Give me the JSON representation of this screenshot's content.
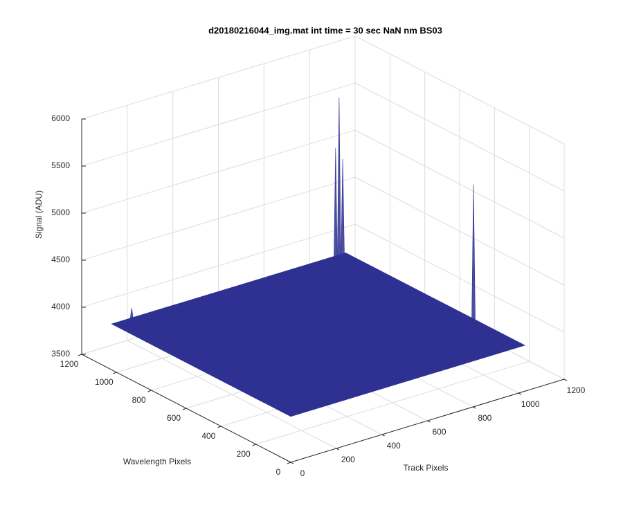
{
  "chart_data": {
    "type": "surface3d",
    "title": "d20180216044_img.mat int time = 30 sec  NaN nm BS03",
    "xlabel": "Track Pixels",
    "ylabel": "Wavelength Pixels",
    "zlabel": "Signal (ADU)",
    "xlim": [
      0,
      1200
    ],
    "xticks": [
      0,
      200,
      400,
      600,
      800,
      1000,
      1200
    ],
    "ylim": [
      0,
      1200
    ],
    "yticks": [
      0,
      200,
      400,
      600,
      800,
      1000,
      1200
    ],
    "zlim": [
      3500,
      6000
    ],
    "zticks": [
      3500,
      4000,
      4500,
      5000,
      5500,
      6000
    ],
    "grid": true,
    "color": "#2e3192",
    "surface": {
      "xrange": [
        0,
        1024
      ],
      "yrange": [
        0,
        1024
      ],
      "level": 3990
    },
    "peaks": [
      {
        "x": 967,
        "y": 987,
        "z": 5720
      },
      {
        "x": 950,
        "y": 985,
        "z": 5200
      },
      {
        "x": 985,
        "y": 990,
        "z": 5050
      },
      {
        "x": 1020,
        "y": 285,
        "z": 5430
      },
      {
        "x": 72,
        "y": 1007,
        "z": 4125
      }
    ]
  }
}
